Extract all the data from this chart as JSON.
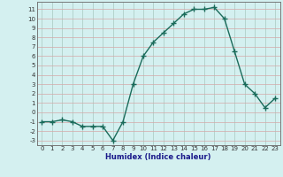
{
  "x": [
    0,
    1,
    2,
    3,
    4,
    5,
    6,
    7,
    8,
    9,
    10,
    11,
    12,
    13,
    14,
    15,
    16,
    17,
    18,
    19,
    20,
    21,
    22,
    23
  ],
  "y": [
    -1,
    -1,
    -0.8,
    -1,
    -1.5,
    -1.5,
    -1.5,
    -3,
    -1,
    3,
    6,
    7.5,
    8.5,
    9.5,
    10.5,
    11,
    11,
    11.2,
    10,
    6.5,
    3,
    2,
    0.5,
    1.5
  ],
  "line_color": "#1a6b5a",
  "marker": "+",
  "marker_size": 4,
  "bg_color": "#d4f0f0",
  "grid_color_v": "#a8c8c0",
  "grid_color_h": "#d4a8a8",
  "xlabel": "Humidex (Indice chaleur)",
  "xlabel_fontsize": 6,
  "xlabel_color": "#1a1a8a",
  "xlabel_bold": true,
  "xlim": [
    -0.5,
    23.5
  ],
  "ylim": [
    -3.5,
    11.8
  ],
  "yticks": [
    -3,
    -2,
    -1,
    0,
    1,
    2,
    3,
    4,
    5,
    6,
    7,
    8,
    9,
    10,
    11
  ],
  "xticks": [
    0,
    1,
    2,
    3,
    4,
    5,
    6,
    7,
    8,
    9,
    10,
    11,
    12,
    13,
    14,
    15,
    16,
    17,
    18,
    19,
    20,
    21,
    22,
    23
  ],
  "tick_fontsize": 5,
  "line_width": 1.0
}
